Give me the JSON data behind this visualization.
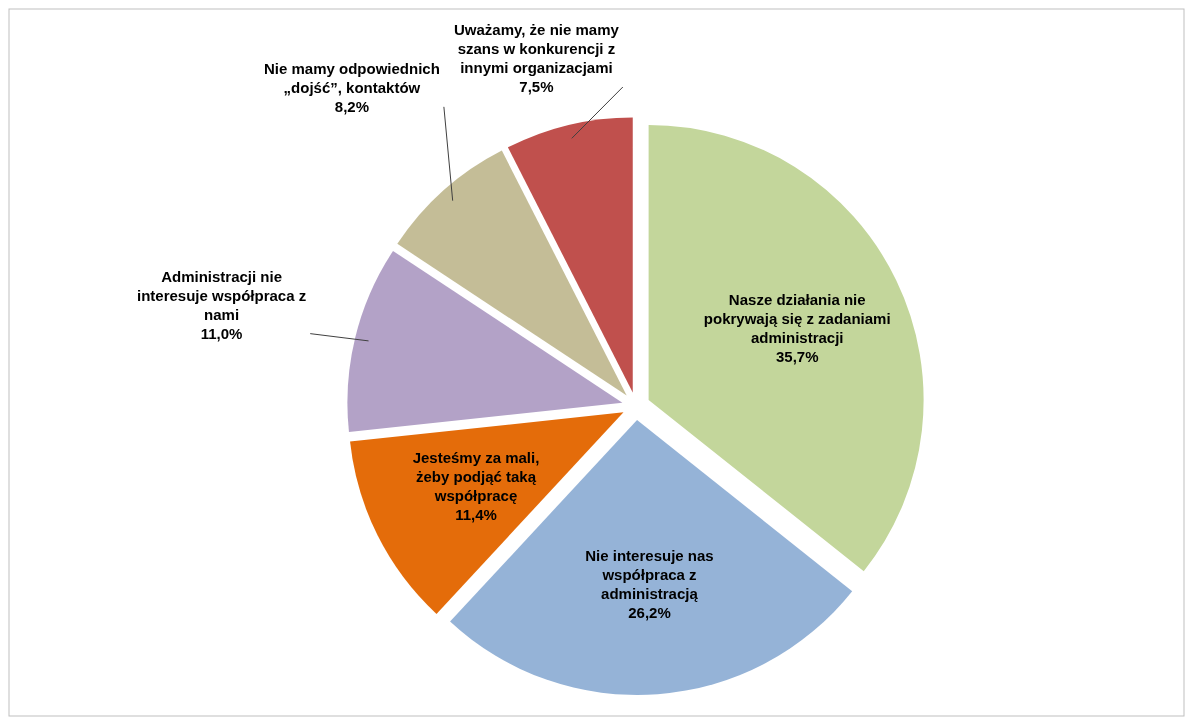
{
  "chart_data": {
    "type": "pie",
    "categories": [
      "Nasze działania nie pokrywają się z zadaniami administracji",
      "Nie interesuje nas współpraca z administracją",
      "Jesteśmy za mali, żeby podjąć taką współpracę",
      "Administracji nie interesuje współpraca z nami",
      "Nie mamy odpowiednich „dojść”, kontaktów",
      "Uważamy, że nie mamy szans w konkurencji z innymi organizacjami"
    ],
    "values": [
      35.7,
      26.2,
      11.4,
      11.0,
      8.2,
      7.5
    ],
    "value_labels": [
      "35,7%",
      "26,2%",
      "11,4%",
      "11,0%",
      "8,2%",
      "7,5%"
    ],
    "colors": [
      "#c3d69b",
      "#95b3d7",
      "#e46c0a",
      "#b3a2c7",
      "#c4bd97",
      "#c0504d"
    ],
    "legend": false
  }
}
